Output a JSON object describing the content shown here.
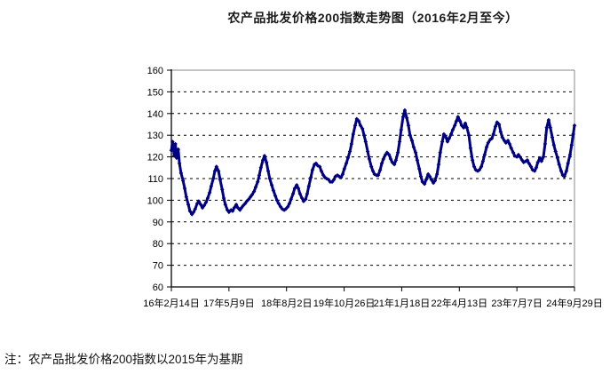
{
  "note": "注：农产品批发价格200指数以2015年为基期",
  "colors": {
    "background": "#ffffff",
    "grid": "#000000",
    "axis": "#000000",
    "frame": "#8a8a8a",
    "line": "#000082",
    "text": "#000000"
  },
  "chart_data": {
    "type": "line",
    "title": "农产品批发价格200指数走势图（2016年2月至今）",
    "series_name": "农产品批发价格200指数",
    "ylim": [
      60,
      160
    ],
    "ytick_step": 10,
    "ytick_labels": [
      "60",
      "70",
      "80",
      "90",
      "100",
      "110",
      "120",
      "130",
      "140",
      "150",
      "160"
    ],
    "xtick_labels": [
      "16年2月14日",
      "17年5月9日",
      "18年8月2日",
      "19年10月26日",
      "21年1月18日",
      "22年4月13日",
      "23年7月7日",
      "24年9月29日"
    ],
    "grid": "horizontal-dashed",
    "legend": "none",
    "x_axis_note": "x values are fractions of the span 16年2月14日 → 24年9月29日",
    "points": [
      [
        0,
        123
      ],
      [
        0.003,
        127
      ],
      [
        0.007,
        120.5
      ],
      [
        0.01,
        126
      ],
      [
        0.013,
        119.5
      ],
      [
        0.017,
        123.5
      ],
      [
        0.02,
        117
      ],
      [
        0.024,
        112.5
      ],
      [
        0.029,
        109
      ],
      [
        0.033,
        105.5
      ],
      [
        0.037,
        101.5
      ],
      [
        0.042,
        98
      ],
      [
        0.046,
        95
      ],
      [
        0.051,
        93.5
      ],
      [
        0.055,
        94.5
      ],
      [
        0.059,
        96
      ],
      [
        0.064,
        98.5
      ],
      [
        0.068,
        99.5
      ],
      [
        0.073,
        98
      ],
      [
        0.077,
        96.5
      ],
      [
        0.081,
        97.5
      ],
      [
        0.086,
        99
      ],
      [
        0.09,
        101
      ],
      [
        0.095,
        103.5
      ],
      [
        0.099,
        106.5
      ],
      [
        0.104,
        110
      ],
      [
        0.108,
        113.5
      ],
      [
        0.112,
        115.5
      ],
      [
        0.117,
        113.5
      ],
      [
        0.121,
        109.5
      ],
      [
        0.126,
        105
      ],
      [
        0.13,
        101
      ],
      [
        0.134,
        98
      ],
      [
        0.139,
        95.5
      ],
      [
        0.143,
        94.5
      ],
      [
        0.148,
        95.5
      ],
      [
        0.152,
        95
      ],
      [
        0.156,
        96.5
      ],
      [
        0.161,
        98
      ],
      [
        0.165,
        96.5
      ],
      [
        0.17,
        95.5
      ],
      [
        0.174,
        96.5
      ],
      [
        0.178,
        97.5
      ],
      [
        0.183,
        98.5
      ],
      [
        0.187,
        99.5
      ],
      [
        0.192,
        100.5
      ],
      [
        0.196,
        101.5
      ],
      [
        0.2,
        102.5
      ],
      [
        0.205,
        104
      ],
      [
        0.209,
        106
      ],
      [
        0.214,
        108.5
      ],
      [
        0.218,
        111.5
      ],
      [
        0.222,
        115
      ],
      [
        0.227,
        118.5
      ],
      [
        0.231,
        120.5
      ],
      [
        0.236,
        117.5
      ],
      [
        0.24,
        113.5
      ],
      [
        0.244,
        110
      ],
      [
        0.249,
        107
      ],
      [
        0.253,
        104.5
      ],
      [
        0.258,
        102
      ],
      [
        0.262,
        100
      ],
      [
        0.266,
        98.5
      ],
      [
        0.271,
        97
      ],
      [
        0.275,
        96
      ],
      [
        0.28,
        95.5
      ],
      [
        0.284,
        96
      ],
      [
        0.289,
        97
      ],
      [
        0.293,
        98.5
      ],
      [
        0.297,
        100.5
      ],
      [
        0.302,
        103
      ],
      [
        0.306,
        105.5
      ],
      [
        0.311,
        107
      ],
      [
        0.315,
        105.5
      ],
      [
        0.319,
        103
      ],
      [
        0.324,
        101
      ],
      [
        0.328,
        99.5
      ],
      [
        0.333,
        100.5
      ],
      [
        0.337,
        103
      ],
      [
        0.341,
        106.5
      ],
      [
        0.346,
        110.5
      ],
      [
        0.35,
        114
      ],
      [
        0.355,
        116.5
      ],
      [
        0.359,
        117
      ],
      [
        0.363,
        116
      ],
      [
        0.368,
        115.5
      ],
      [
        0.372,
        113.5
      ],
      [
        0.377,
        111.5
      ],
      [
        0.381,
        110.5
      ],
      [
        0.385,
        110
      ],
      [
        0.39,
        109.5
      ],
      [
        0.394,
        108.5
      ],
      [
        0.399,
        108.5
      ],
      [
        0.403,
        109.5
      ],
      [
        0.407,
        111
      ],
      [
        0.412,
        111.5
      ],
      [
        0.416,
        111
      ],
      [
        0.421,
        110.5
      ],
      [
        0.425,
        112
      ],
      [
        0.429,
        114.5
      ],
      [
        0.434,
        117
      ],
      [
        0.438,
        119.5
      ],
      [
        0.443,
        122.5
      ],
      [
        0.447,
        126
      ],
      [
        0.451,
        130.5
      ],
      [
        0.456,
        134.5
      ],
      [
        0.46,
        137.5
      ],
      [
        0.465,
        136.5
      ],
      [
        0.469,
        134.5
      ],
      [
        0.474,
        133
      ],
      [
        0.478,
        130
      ],
      [
        0.482,
        127
      ],
      [
        0.487,
        122.5
      ],
      [
        0.491,
        119
      ],
      [
        0.496,
        115.5
      ],
      [
        0.5,
        113.5
      ],
      [
        0.504,
        112
      ],
      [
        0.509,
        111.5
      ],
      [
        0.513,
        111.5
      ],
      [
        0.518,
        114
      ],
      [
        0.522,
        117
      ],
      [
        0.526,
        119
      ],
      [
        0.531,
        121
      ],
      [
        0.535,
        122
      ],
      [
        0.54,
        121
      ],
      [
        0.544,
        119
      ],
      [
        0.548,
        117.5
      ],
      [
        0.553,
        116.5
      ],
      [
        0.557,
        118.5
      ],
      [
        0.562,
        122
      ],
      [
        0.566,
        127
      ],
      [
        0.57,
        132.5
      ],
      [
        0.575,
        138.5
      ],
      [
        0.579,
        141.5
      ],
      [
        0.584,
        138
      ],
      [
        0.588,
        134.5
      ],
      [
        0.592,
        130
      ],
      [
        0.597,
        127.5
      ],
      [
        0.601,
        124.5
      ],
      [
        0.606,
        122
      ],
      [
        0.61,
        118.5
      ],
      [
        0.615,
        114.5
      ],
      [
        0.619,
        111
      ],
      [
        0.623,
        108.5
      ],
      [
        0.628,
        107.5
      ],
      [
        0.632,
        109.5
      ],
      [
        0.637,
        112
      ],
      [
        0.641,
        111
      ],
      [
        0.645,
        109.5
      ],
      [
        0.65,
        108
      ],
      [
        0.654,
        109
      ],
      [
        0.659,
        112
      ],
      [
        0.663,
        116.5
      ],
      [
        0.667,
        122
      ],
      [
        0.672,
        127
      ],
      [
        0.676,
        130.5
      ],
      [
        0.681,
        129
      ],
      [
        0.685,
        127
      ],
      [
        0.689,
        128.5
      ],
      [
        0.694,
        130.5
      ],
      [
        0.698,
        132.5
      ],
      [
        0.703,
        134.5
      ],
      [
        0.707,
        136.5
      ],
      [
        0.711,
        138.5
      ],
      [
        0.716,
        136.5
      ],
      [
        0.72,
        134.5
      ],
      [
        0.725,
        133.5
      ],
      [
        0.729,
        135.5
      ],
      [
        0.733,
        133.5
      ],
      [
        0.738,
        130
      ],
      [
        0.742,
        124
      ],
      [
        0.747,
        118.5
      ],
      [
        0.751,
        115.5
      ],
      [
        0.755,
        114
      ],
      [
        0.76,
        113.5
      ],
      [
        0.764,
        114
      ],
      [
        0.769,
        115.5
      ],
      [
        0.773,
        118
      ],
      [
        0.777,
        121
      ],
      [
        0.782,
        124.5
      ],
      [
        0.786,
        126.5
      ],
      [
        0.791,
        128
      ],
      [
        0.795,
        128.5
      ],
      [
        0.799,
        130.5
      ],
      [
        0.804,
        134
      ],
      [
        0.808,
        136
      ],
      [
        0.813,
        135
      ],
      [
        0.817,
        131.5
      ],
      [
        0.821,
        129
      ],
      [
        0.826,
        127.5
      ],
      [
        0.83,
        126.5
      ],
      [
        0.835,
        127.5
      ],
      [
        0.839,
        126
      ],
      [
        0.843,
        124
      ],
      [
        0.848,
        122
      ],
      [
        0.852,
        120.5
      ],
      [
        0.857,
        120
      ],
      [
        0.861,
        121
      ],
      [
        0.865,
        120
      ],
      [
        0.87,
        118.5
      ],
      [
        0.874,
        117.5
      ],
      [
        0.879,
        118
      ],
      [
        0.883,
        118.5
      ],
      [
        0.887,
        117
      ],
      [
        0.892,
        115.5
      ],
      [
        0.896,
        114
      ],
      [
        0.901,
        113.5
      ],
      [
        0.905,
        115
      ],
      [
        0.909,
        117.5
      ],
      [
        0.914,
        119.5
      ],
      [
        0.918,
        118
      ],
      [
        0.923,
        120
      ],
      [
        0.927,
        126
      ],
      [
        0.931,
        133.5
      ],
      [
        0.936,
        137
      ],
      [
        0.94,
        133.5
      ],
      [
        0.945,
        129
      ],
      [
        0.949,
        125.5
      ],
      [
        0.953,
        122.5
      ],
      [
        0.958,
        119.5
      ],
      [
        0.962,
        116.5
      ],
      [
        0.967,
        113.5
      ],
      [
        0.971,
        111.5
      ],
      [
        0.975,
        111
      ],
      [
        0.98,
        113.5
      ],
      [
        0.984,
        117
      ],
      [
        0.989,
        121
      ],
      [
        0.993,
        125.5
      ],
      [
        0.997,
        130.5
      ],
      [
        1,
        134.5
      ]
    ]
  }
}
